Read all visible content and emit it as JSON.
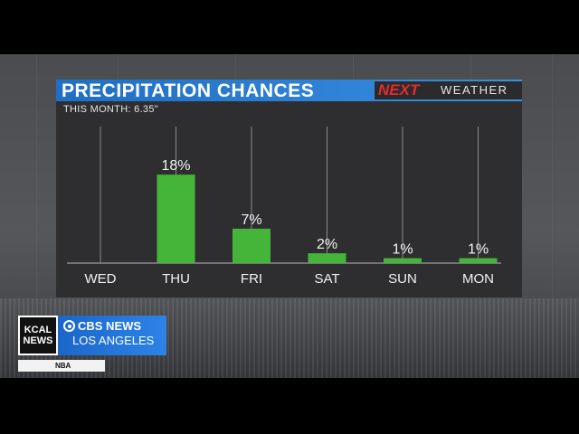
{
  "header": {
    "title": "PRECIPITATION CHANCES",
    "logo_next": "NEXT",
    "logo_weather": "WEATHER",
    "subtitle": "THIS MONTH:  6.35\""
  },
  "chart_data": {
    "type": "bar",
    "title": "PRECIPITATION CHANCES",
    "categories": [
      "WED",
      "THU",
      "FRI",
      "SAT",
      "SUN",
      "MON"
    ],
    "values": [
      0,
      18,
      7,
      2,
      1,
      1
    ],
    "labels": [
      "",
      "18%",
      "7%",
      "2%",
      "1%",
      "1%"
    ],
    "ylim": [
      0,
      100
    ],
    "grid": true,
    "bar_color": "#45b53a"
  },
  "branding": {
    "kcal_line1": "KCAL",
    "kcal_line2": "NEWS",
    "cbs_line1": "CBS NEWS",
    "cbs_line2": "LOS ANGELES",
    "ticker": "NBA"
  },
  "colors": {
    "title_bar": "#2a80d6",
    "logo_red": "#e32b2b",
    "panel": "#2e2e30"
  }
}
